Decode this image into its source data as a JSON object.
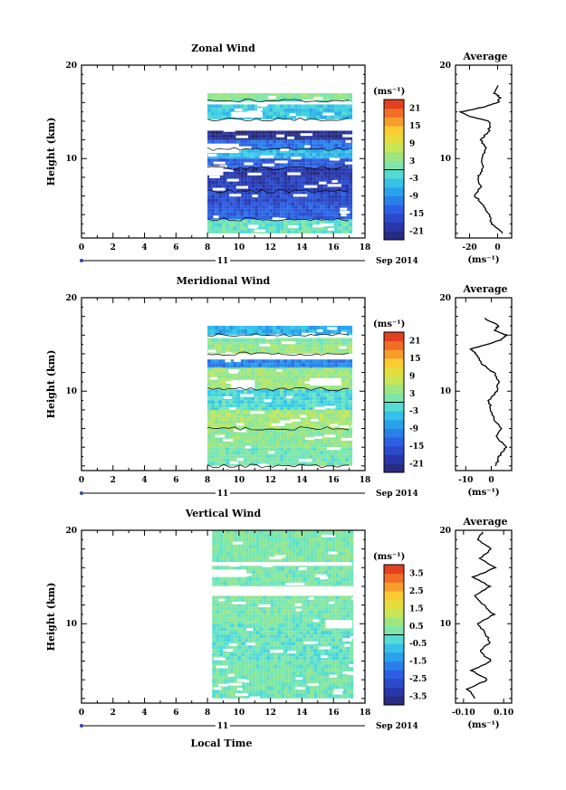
{
  "chart_data": [
    {
      "type": "heatmap",
      "title": "Zonal Wind",
      "ylabel": "Height (km)",
      "x_ticks": [
        "0",
        "2",
        "4",
        "6",
        "8",
        "10",
        "12",
        "14",
        "16",
        "18"
      ],
      "y_ticks": [
        "10",
        "20"
      ],
      "xlim": [
        0,
        18
      ],
      "ylim": [
        1.5,
        20
      ],
      "data_x_range": [
        8,
        17.2
      ],
      "data_y_range": [
        2,
        17
      ],
      "date_label": "11",
      "date_suffix": "Sep 2014",
      "colorbar": {
        "unit_label": "(ms⁻¹)",
        "ticks": [
          "21",
          "15",
          "9",
          "3",
          "-3",
          "-9",
          "-15",
          "-21"
        ],
        "range": [
          -24,
          24
        ]
      },
      "layers": [
        {
          "y": [
            16.2,
            17.0
          ],
          "value": 3
        },
        {
          "y": [
            15.4,
            16.2
          ],
          "value": -3
        },
        {
          "y": [
            14.2,
            15.4
          ],
          "value": -4
        },
        {
          "y": [
            12.0,
            13.0
          ],
          "value": -22
        },
        {
          "y": [
            11.0,
            12.0
          ],
          "value": -12
        },
        {
          "y": [
            10.0,
            11.0
          ],
          "value": -5
        },
        {
          "y": [
            9.0,
            10.0
          ],
          "value": -14
        },
        {
          "y": [
            8.0,
            9.0
          ],
          "value": -20
        },
        {
          "y": [
            6.5,
            8.0
          ],
          "value": -18
        },
        {
          "y": [
            5.0,
            6.5
          ],
          "value": -16
        },
        {
          "y": [
            3.5,
            5.0
          ],
          "value": -14
        },
        {
          "y": [
            2.0,
            3.5
          ],
          "value": 0
        }
      ],
      "gaps": [
        {
          "x": [
            8,
            17.2
          ],
          "y": [
            13.0,
            14.2
          ]
        },
        {
          "x": [
            8,
            17.2
          ],
          "y": [
            15.8,
            16.1
          ]
        },
        {
          "x": [
            8,
            10.0
          ],
          "y": [
            10.6,
            11.6
          ]
        },
        {
          "x": [
            9.5,
            11.5
          ],
          "y": [
            14.4,
            15.0
          ]
        },
        {
          "x": [
            8,
            9.0
          ],
          "y": [
            8.2,
            9.2
          ]
        }
      ],
      "profile": {
        "title": "Average",
        "xlim": [
          -30,
          10
        ],
        "x_ticks": [
          "-20",
          "0"
        ],
        "x_tick_values": [
          -20,
          0
        ],
        "y_ticks": [
          "10",
          "20"
        ],
        "xlabel": "(ms⁻¹)",
        "heights": [
          2,
          3,
          4,
          5,
          6,
          7,
          8,
          9,
          10,
          11,
          12,
          13,
          14,
          14.5,
          15,
          15.5,
          16,
          16.5,
          17,
          18
        ],
        "values": [
          4,
          -4,
          -6,
          -10,
          -16,
          -12,
          -14,
          -10,
          -12,
          -8,
          -12,
          -6,
          -6,
          -20,
          -26,
          -10,
          0,
          2,
          -2,
          0
        ]
      }
    },
    {
      "type": "heatmap",
      "title": "Meridional Wind",
      "ylabel": "Height (km)",
      "x_ticks": [
        "0",
        "2",
        "4",
        "6",
        "8",
        "10",
        "12",
        "14",
        "16",
        "18"
      ],
      "y_ticks": [
        "10",
        "20"
      ],
      "xlim": [
        0,
        18
      ],
      "ylim": [
        1.5,
        20
      ],
      "data_x_range": [
        8,
        17.2
      ],
      "data_y_range": [
        2,
        17
      ],
      "date_label": "11",
      "date_suffix": "Sep 2014",
      "colorbar": {
        "unit_label": "(ms⁻¹)",
        "ticks": [
          "21",
          "15",
          "9",
          "3",
          "-3",
          "-9",
          "-15",
          "-21"
        ],
        "range": [
          -24,
          24
        ]
      },
      "layers": [
        {
          "y": [
            16.0,
            17.0
          ],
          "value": -6
        },
        {
          "y": [
            15.0,
            16.0
          ],
          "value": 2
        },
        {
          "y": [
            14.0,
            15.0
          ],
          "value": 4
        },
        {
          "y": [
            12.5,
            13.4
          ],
          "value": -10
        },
        {
          "y": [
            10.2,
            12.5
          ],
          "value": 4
        },
        {
          "y": [
            8.0,
            10.2
          ],
          "value": -2
        },
        {
          "y": [
            6.0,
            8.0
          ],
          "value": 5
        },
        {
          "y": [
            4.0,
            6.0
          ],
          "value": 3
        },
        {
          "y": [
            2.0,
            4.0
          ],
          "value": 1
        }
      ],
      "gaps": [
        {
          "x": [
            8,
            17.2
          ],
          "y": [
            13.4,
            14.0
          ]
        },
        {
          "x": [
            8,
            17.2
          ],
          "y": [
            15.7,
            16.0
          ]
        },
        {
          "x": [
            9.5,
            11.0
          ],
          "y": [
            10.2,
            11.2
          ]
        },
        {
          "x": [
            14.5,
            16.5
          ],
          "y": [
            10.6,
            11.4
          ]
        }
      ],
      "profile": {
        "title": "Average",
        "xlim": [
          -14,
          8
        ],
        "x_ticks": [
          "-10",
          "0"
        ],
        "x_tick_values": [
          -10,
          0
        ],
        "y_ticks": [
          "10",
          "20"
        ],
        "xlabel": "(ms⁻¹)",
        "heights": [
          2,
          3,
          4,
          5,
          6,
          7,
          8,
          9,
          10,
          11,
          12,
          13,
          14,
          14.5,
          15,
          15.5,
          16,
          16.5,
          17,
          18
        ],
        "values": [
          2,
          3,
          6,
          2,
          4,
          1,
          0,
          -1,
          2,
          3,
          1,
          -4,
          -6,
          -8,
          -2,
          4,
          6,
          1,
          3,
          -4
        ]
      }
    },
    {
      "type": "heatmap",
      "title": "Vertical Wind",
      "ylabel": "Height (km)",
      "xlabel": "Local Time",
      "x_ticks": [
        "0",
        "2",
        "4",
        "6",
        "8",
        "10",
        "12",
        "14",
        "16",
        "18"
      ],
      "y_ticks": [
        "10",
        "20"
      ],
      "xlim": [
        0,
        18
      ],
      "ylim": [
        1.5,
        20
      ],
      "data_x_range": [
        8.3,
        17.2
      ],
      "data_y_range": [
        2,
        20
      ],
      "date_label": "11",
      "date_suffix": "Sep 2014",
      "colorbar": {
        "unit_label": "(ms⁻¹)",
        "ticks": [
          "3.5",
          "2.5",
          "1.5",
          "0.5",
          "-0.5",
          "-1.5",
          "-2.5",
          "-3.5"
        ],
        "range": [
          -4,
          4
        ]
      },
      "layers": [
        {
          "y": [
            16.5,
            20.0
          ],
          "value": 0.3
        },
        {
          "y": [
            14.0,
            16.5
          ],
          "value": 0.2
        },
        {
          "y": [
            10.0,
            13.0
          ],
          "value": 0.25
        },
        {
          "y": [
            6.0,
            10.0
          ],
          "value": 0.0
        },
        {
          "y": [
            2.0,
            6.0
          ],
          "value": 0.15
        }
      ],
      "gaps": [
        {
          "x": [
            8.3,
            17.2
          ],
          "y": [
            13.0,
            14.0
          ]
        },
        {
          "x": [
            8.3,
            10.5
          ],
          "y": [
            15.0,
            15.8
          ]
        },
        {
          "x": [
            15.5,
            17.2
          ],
          "y": [
            9.5,
            10.4
          ]
        },
        {
          "x": [
            8.3,
            17.2
          ],
          "y": [
            16.2,
            16.6
          ]
        }
      ],
      "profile": {
        "title": "Average",
        "xlim": [
          -0.14,
          0.14
        ],
        "x_ticks": [
          "-0.10",
          "0.10"
        ],
        "x_tick_values": [
          -0.1,
          0.1
        ],
        "y_ticks": [
          "10",
          "20"
        ],
        "xlabel": "(ms⁻¹)",
        "heights": [
          2,
          3,
          4,
          5,
          6,
          7,
          8,
          9,
          10,
          11,
          12,
          13,
          14,
          15,
          16,
          17,
          18,
          19,
          20
        ],
        "values": [
          -0.04,
          -0.08,
          0.02,
          -0.06,
          0.04,
          -0.02,
          0.03,
          0.01,
          -0.03,
          0.05,
          0.0,
          -0.04,
          0.03,
          -0.05,
          0.06,
          -0.02,
          0.04,
          -0.03,
          0.0
        ]
      }
    }
  ]
}
